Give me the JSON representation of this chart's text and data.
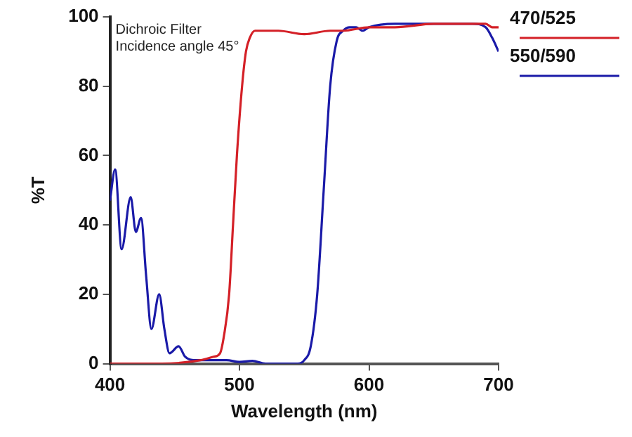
{
  "chart_data": {
    "type": "line",
    "xlabel": "Wavelength (nm)",
    "ylabel": "%T",
    "annotations": [
      "Dichroic Filter",
      "Incidence angle 45°"
    ],
    "xlim": [
      400,
      700
    ],
    "xticks": [
      400,
      500,
      600,
      700
    ],
    "ylim": [
      0,
      100
    ],
    "yticks": [
      0,
      20,
      40,
      60,
      80,
      100
    ],
    "grid": false,
    "legend": "right",
    "marker": "none",
    "line_style": "solid",
    "series": [
      {
        "name": "470/525",
        "color": "#d42027",
        "x": [
          400,
          440,
          470,
          480,
          485,
          488,
          492,
          495,
          498,
          502,
          505,
          508,
          512,
          520,
          530,
          550,
          570,
          580,
          600,
          620,
          650,
          670,
          690,
          695,
          700
        ],
        "values": [
          0,
          0,
          1,
          2,
          3,
          8,
          20,
          40,
          60,
          80,
          90,
          94,
          96,
          96,
          96,
          95,
          96,
          96,
          97,
          97,
          98,
          98,
          98,
          97,
          97
        ]
      },
      {
        "name": "550/590",
        "color": "#1a1aa8",
        "x": [
          400,
          404,
          409,
          416,
          420,
          424,
          428,
          432,
          438,
          442,
          446,
          453,
          458,
          465,
          480,
          490,
          500,
          510,
          520,
          545,
          550,
          555,
          560,
          565,
          570,
          575,
          580,
          585,
          590,
          595,
          600,
          620,
          650,
          680,
          690,
          695,
          700
        ],
        "values": [
          47,
          56,
          33,
          48,
          38,
          42,
          25,
          10,
          20,
          10,
          3,
          5,
          2,
          1,
          1,
          1,
          0.5,
          0.8,
          0,
          0,
          1,
          5,
          20,
          50,
          80,
          93,
          96,
          97,
          97,
          96,
          97,
          98,
          98,
          98,
          97,
          94,
          90
        ]
      }
    ]
  }
}
